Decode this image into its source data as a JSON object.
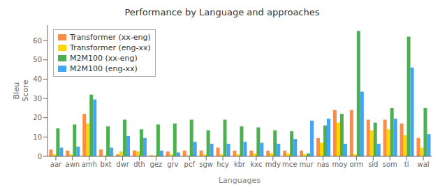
{
  "chart_data": {
    "type": "bar",
    "title": "Performance by Language and approaches",
    "xlabel": "Languages",
    "ylabel": "Bleu\nScore",
    "categories": [
      "aar",
      "awn",
      "amh",
      "bxt",
      "dwr",
      "dth",
      "gez",
      "grv",
      "pcf",
      "sgw",
      "hcy",
      "kbr",
      "kxc",
      "mdy",
      "mce",
      "mur",
      "nas",
      "moy",
      "orm",
      "sid",
      "som",
      "ti",
      "wal"
    ],
    "series": [
      {
        "name": "Transformer (xx-eng)",
        "color": "#FF8C42",
        "values": [
          3.5,
          3.0,
          22.0,
          3.5,
          1.0,
          3.0,
          0.5,
          2.5,
          3.0,
          3.0,
          4.5,
          3.0,
          3.0,
          3.0,
          3.0,
          3.0,
          9.5,
          24.0,
          24.0,
          19.0,
          19.0,
          17.0,
          9.5
        ]
      },
      {
        "name": "Transformer (eng-xx)",
        "color": "#FFD600",
        "values": [
          1.0,
          1.0,
          17.0,
          0.5,
          2.5,
          2.5,
          0.5,
          1.0,
          0.5,
          1.0,
          1.0,
          1.0,
          1.5,
          1.5,
          1.5,
          1.0,
          7.0,
          17.5,
          1.0,
          13.5,
          14.0,
          11.0,
          4.5
        ]
      },
      {
        "name": "M2M100 (xx-eng)",
        "color": "#4CAF50",
        "values": [
          14.5,
          16.5,
          32.0,
          15.5,
          19.0,
          14.0,
          16.5,
          17.0,
          19.0,
          13.5,
          19.0,
          15.5,
          15.0,
          13.5,
          13.0,
          1.5,
          16.0,
          22.0,
          65.0,
          17.5,
          25.0,
          62.0,
          25.0
        ]
      },
      {
        "name": "M2M100 (eng-xx)",
        "color": "#42A5F5",
        "values": [
          4.5,
          5.0,
          29.5,
          4.5,
          10.5,
          9.5,
          3.0,
          2.0,
          7.5,
          6.5,
          6.5,
          7.5,
          7.0,
          6.5,
          9.0,
          18.5,
          19.5,
          6.5,
          33.5,
          6.5,
          19.5,
          46.0,
          11.5
        ]
      }
    ],
    "ylim": [
      0,
      68
    ],
    "yticks": [
      0,
      10,
      20,
      30,
      40,
      50,
      60
    ],
    "legend": "upper left",
    "grid": false
  }
}
